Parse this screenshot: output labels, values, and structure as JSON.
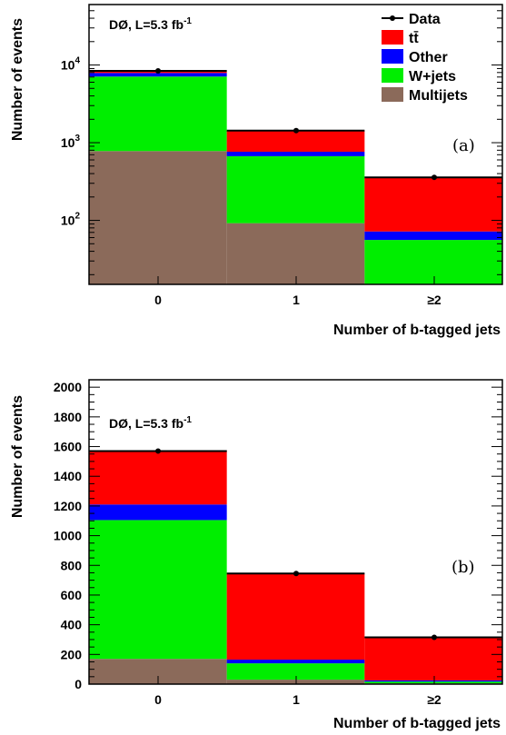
{
  "colors": {
    "ttbar": "#ff0000",
    "other": "#0000ff",
    "wjets": "#00ee00",
    "multijets": "#8b6a5a",
    "data": "#000000"
  },
  "chart_data": [
    {
      "type": "bar",
      "stacked": true,
      "panel_label": "(a)",
      "experiment_label": "DØ, L=5.3 fb",
      "experiment_exp": "-1",
      "xlabel": "Number of b-tagged jets",
      "ylabel": "Number of events",
      "yscale": "log",
      "ylim": [
        15,
        60000
      ],
      "categories": [
        "0",
        "1",
        "≥2"
      ],
      "yticks": [
        {
          "base": "10",
          "exp": "2",
          "value": 100
        },
        {
          "base": "10",
          "exp": "3",
          "value": 1000
        },
        {
          "base": "10",
          "exp": "4",
          "value": 10000
        }
      ],
      "series": [
        {
          "name": "Multijets",
          "color_key": "multijets",
          "values": [
            780,
            92,
            0
          ]
        },
        {
          "name": "W+jets",
          "color_key": "wjets",
          "values": [
            6320,
            578,
            56
          ]
        },
        {
          "name": "Other",
          "color_key": "other",
          "values": [
            800,
            95,
            16
          ]
        },
        {
          "name": "tt̄",
          "color_key": "ttbar",
          "values": [
            300,
            665,
            282
          ]
        }
      ],
      "data_points": [
        8400,
        1430,
        358
      ],
      "data_label": "Data",
      "legend": [
        "Data",
        "tt̄",
        "Other",
        "W+jets",
        "Multijets"
      ],
      "legend_position": "top-right"
    },
    {
      "type": "bar",
      "stacked": true,
      "panel_label": "(b)",
      "experiment_label": "DØ, L=5.3 fb",
      "experiment_exp": "-1",
      "xlabel": "Number of b-tagged jets",
      "ylabel": "Number of events",
      "yscale": "linear",
      "ylim": [
        0,
        2050
      ],
      "categories": [
        "0",
        "1",
        "≥2"
      ],
      "yticks": [
        {
          "label": "0",
          "value": 0
        },
        {
          "label": "200",
          "value": 200
        },
        {
          "label": "400",
          "value": 400
        },
        {
          "label": "600",
          "value": 600
        },
        {
          "label": "800",
          "value": 800
        },
        {
          "label": "1000",
          "value": 1000
        },
        {
          "label": "1200",
          "value": 1200
        },
        {
          "label": "1400",
          "value": 1400
        },
        {
          "label": "1600",
          "value": 1600
        },
        {
          "label": "1800",
          "value": 1800
        },
        {
          "label": "2000",
          "value": 2000
        }
      ],
      "series": [
        {
          "name": "Multijets",
          "color_key": "multijets",
          "values": [
            170,
            30,
            5
          ]
        },
        {
          "name": "W+jets",
          "color_key": "wjets",
          "values": [
            935,
            110,
            12
          ]
        },
        {
          "name": "Other",
          "color_key": "other",
          "values": [
            105,
            25,
            8
          ]
        },
        {
          "name": "tt̄",
          "color_key": "ttbar",
          "values": [
            365,
            580,
            295
          ]
        }
      ],
      "data_points": [
        1570,
        745,
        315
      ]
    }
  ]
}
